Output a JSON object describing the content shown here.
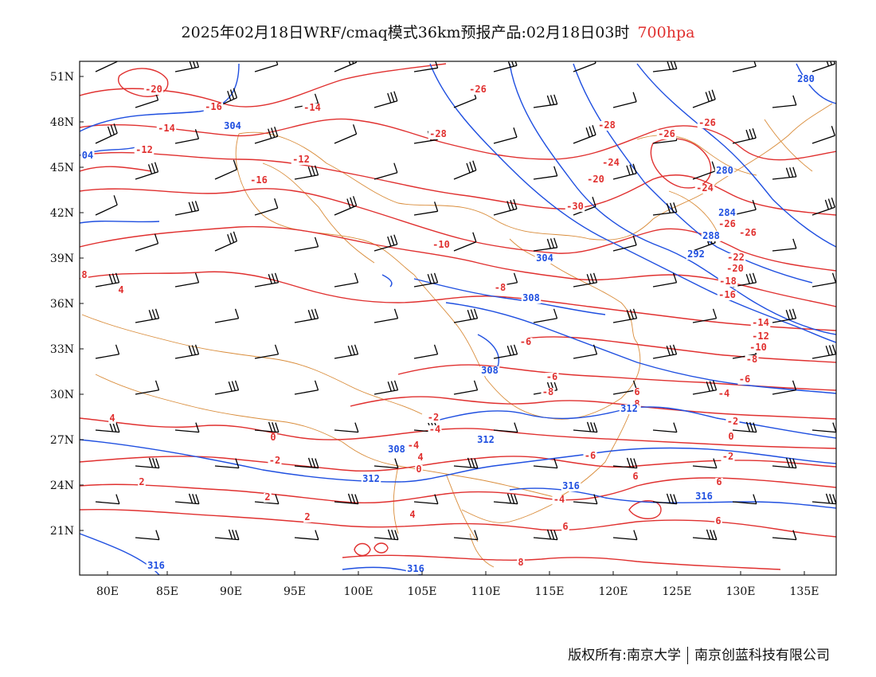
{
  "title": {
    "main": "2025年02月18日WRF/cmaq模式36km预报产品:02月18日03时",
    "level": "700hpa"
  },
  "footer": {
    "copyright": "版权所有:南京大学",
    "company": "南京创蓝科技有限公司"
  },
  "colors": {
    "temperature": "#e0302f",
    "geopotential": "#1f4fe0",
    "boundary": "#d98c3a",
    "wind": "#000000"
  },
  "axes": {
    "lon_labels": [
      "80E",
      "85E",
      "90E",
      "95E",
      "100E",
      "105E",
      "110E",
      "115E",
      "120E",
      "125E",
      "130E",
      "135E"
    ],
    "lat_labels": [
      "51N",
      "48N",
      "45N",
      "42N",
      "39N",
      "36N",
      "33N",
      "30N",
      "27N",
      "24N",
      "21N"
    ]
  },
  "temperature_labels": [
    "-20",
    "-16",
    "-14",
    "-14",
    "-12",
    "-12",
    "-16",
    "-26",
    "-28",
    "-28",
    "-26",
    "-26",
    "-24",
    "-20",
    "-30",
    "-24",
    "-26",
    "-26",
    "-22",
    "-20",
    "-18",
    "-16",
    "-14",
    "-12",
    "-10",
    "-8",
    "-6",
    "-10",
    "-8",
    "-6",
    "-6",
    "-8",
    "-4",
    "-2",
    "-4",
    "-6",
    "-2",
    "-4",
    "0",
    "-2",
    "-4",
    "0",
    "-2",
    "4",
    "2",
    "6",
    "4",
    "0",
    "2",
    "2",
    "4",
    "6",
    "6",
    "8",
    "4",
    "6",
    "6",
    "8",
    "8"
  ],
  "geopotential_labels": [
    "04",
    "304",
    "280",
    "280",
    "284",
    "288",
    "292",
    "304",
    "308",
    "308",
    "312",
    "312",
    "308",
    "312",
    "316",
    "316",
    "316",
    "316"
  ]
}
